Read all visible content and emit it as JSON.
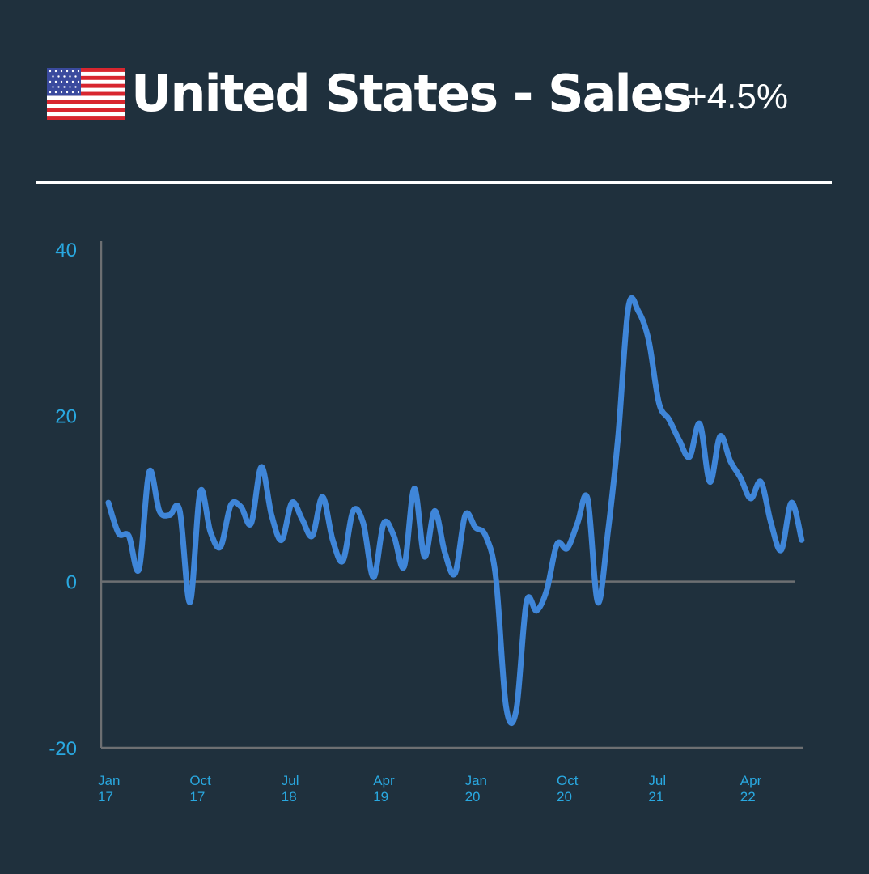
{
  "header": {
    "flag_icon": "us-flag-icon",
    "title": "United States - Sales",
    "change": "+4.5%"
  },
  "colors": {
    "background": "#1f303d",
    "line": "#3f86d9",
    "tick_text": "#29a8e0",
    "axis": "#6d6f72",
    "divider": "#ffffff"
  },
  "chart_data": {
    "type": "line",
    "title": "",
    "xlabel": "",
    "ylabel": "",
    "ylim": [
      -20,
      40
    ],
    "yticks": [
      40,
      20,
      0,
      -20
    ],
    "grid": false,
    "zero_line": true,
    "x_start": "2017-01",
    "x_ticks": [
      {
        "l1": "Jan",
        "l2": "17",
        "date": "2017-01"
      },
      {
        "l1": "Oct",
        "l2": "17",
        "date": "2017-10"
      },
      {
        "l1": "Jul",
        "l2": "18",
        "date": "2018-07"
      },
      {
        "l1": "Apr",
        "l2": "19",
        "date": "2019-04"
      },
      {
        "l1": "Jan",
        "l2": "20",
        "date": "2020-01"
      },
      {
        "l1": "Oct",
        "l2": "20",
        "date": "2020-10"
      },
      {
        "l1": "Jul",
        "l2": "21",
        "date": "2021-07"
      },
      {
        "l1": "Apr",
        "l2": "22",
        "date": "2022-04"
      }
    ],
    "series": [
      {
        "values": [
          9.5,
          5.8,
          5.5,
          1.5,
          13.2,
          8.5,
          8.0,
          8.5,
          -2.5,
          10.8,
          6.0,
          4.2,
          9.2,
          9.0,
          7.0,
          13.8,
          8.0,
          5.0,
          9.5,
          7.5,
          5.5,
          10.2,
          5.0,
          2.5,
          8.5,
          7.0,
          0.5,
          7.0,
          5.5,
          1.8,
          11.2,
          3.0,
          8.5,
          3.5,
          1.0,
          8.0,
          6.5,
          5.5,
          0.5,
          -15.0,
          -15.5,
          -2.5,
          -3.5,
          -1.0,
          4.5,
          4.0,
          7.0,
          10.0,
          -2.5,
          6.0,
          17.5,
          33.0,
          32.5,
          29.0,
          21.5,
          19.5,
          17.0,
          15.0,
          19.0,
          12.0,
          17.5,
          14.5,
          12.5,
          10.0,
          12.0,
          7.0,
          3.8,
          9.5,
          5.0
        ]
      }
    ]
  }
}
